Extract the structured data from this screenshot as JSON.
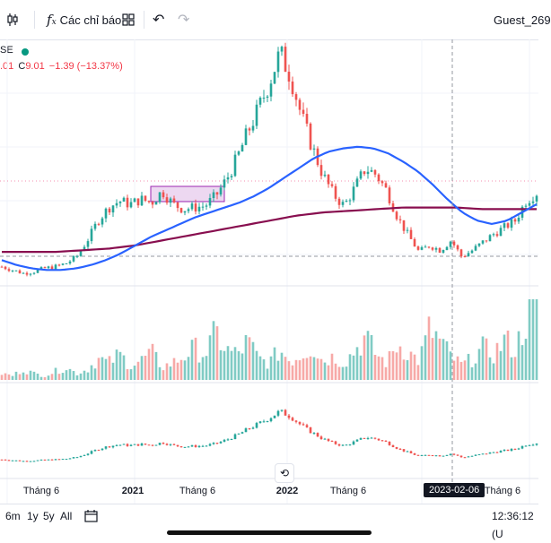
{
  "toolbar": {
    "indicators_label": "Các chỉ báo",
    "user_label": "Guest_269"
  },
  "legend": {
    "symbol_suffix": "SE",
    "ohlc_prefix": ".01",
    "close_label": "C",
    "close_value": "9.01",
    "change": "−1.39 (−13.37%)"
  },
  "bottom": {
    "ranges": [
      "6m",
      "1y",
      "5y",
      "All"
    ],
    "time": "12:36:12 (U"
  },
  "crosshair_date": "2023-02-06",
  "colors": {
    "up": "#26a69a",
    "down": "#ef5350",
    "ma_fast": "#2962ff",
    "ma_slow": "#880e4f",
    "vol_up": "#80cbc4",
    "vol_down": "#f7a9a7",
    "highlight": "#e1bee7"
  },
  "chart_data": {
    "type": "candlestick",
    "title": "",
    "x_tick_labels": [
      "Tháng 6",
      "2021",
      "Tháng 6",
      "2022",
      "Tháng 6",
      "2023-02-06",
      "Tháng 6"
    ],
    "price_path": [
      3.0,
      2.8,
      2.6,
      2.7,
      2.9,
      3.0,
      3.2,
      3.6,
      4.6,
      5.8,
      6.6,
      7.0,
      6.8,
      7.1,
      6.9,
      7.6,
      6.8,
      6.5,
      6.6,
      6.7,
      7.3,
      8.3,
      9.6,
      11.2,
      12.6,
      14.2,
      16.0,
      14.6,
      12.2,
      10.3,
      8.6,
      7.4,
      6.7,
      7.8,
      9.0,
      8.6,
      7.6,
      6.0,
      4.9,
      3.9,
      4.3,
      4.0,
      4.6,
      3.6,
      4.0,
      4.5,
      5.0,
      5.4,
      5.8,
      7.0,
      7.5
    ],
    "ma_fast": [
      3.4,
      3.1,
      2.9,
      2.8,
      2.8,
      2.9,
      3.1,
      3.4,
      3.8,
      4.3,
      4.8,
      5.2,
      5.6,
      6.0,
      6.3,
      6.6,
      6.9,
      7.3,
      7.8,
      8.4,
      9.0,
      9.6,
      10.0,
      10.2,
      10.3,
      10.2,
      9.9,
      9.4,
      8.8,
      8.0,
      7.1,
      6.3,
      5.8,
      5.6,
      5.8,
      6.3,
      6.8
    ],
    "ma_slow": [
      3.9,
      3.9,
      3.9,
      4.0,
      4.1,
      4.3,
      4.6,
      4.9,
      5.2,
      5.5,
      5.8,
      6.1,
      6.3,
      6.4,
      6.5,
      6.6,
      6.6,
      6.6,
      6.5,
      6.5,
      6.5
    ],
    "volume_pattern": [
      3,
      2,
      5,
      3,
      2,
      4,
      6,
      3,
      5,
      10,
      8,
      12,
      7,
      9,
      13,
      6,
      8,
      11,
      15,
      12,
      22,
      14,
      12,
      18,
      10,
      8,
      14,
      9,
      12,
      16,
      9,
      11,
      8,
      14,
      20,
      12,
      8,
      17,
      13,
      9,
      24,
      18,
      11,
      7,
      10,
      15,
      12,
      19,
      14,
      28,
      36
    ],
    "ylabel": "",
    "xlabel": ""
  }
}
